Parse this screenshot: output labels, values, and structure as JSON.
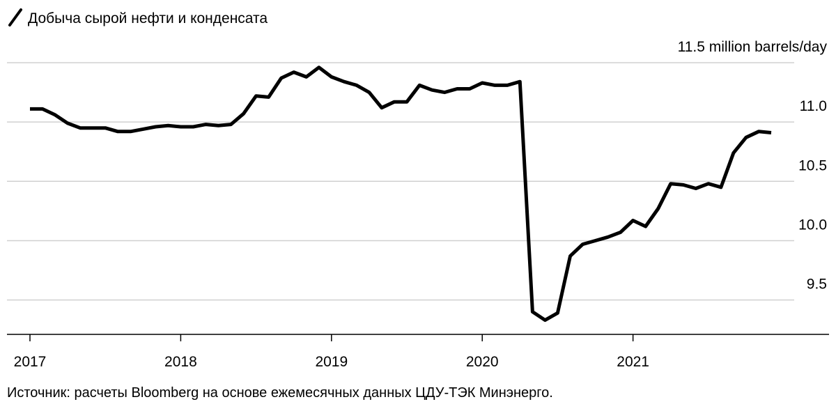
{
  "chart_data": {
    "type": "line",
    "title": "Добыча сырой нефти и конденсата",
    "source": "Источник: расчеты Bloomberg на основе ежемесячных данных ЦДУ-ТЭК Минэнерго.",
    "categories": [
      "2017",
      null,
      null,
      null,
      null,
      null,
      null,
      null,
      null,
      null,
      null,
      null,
      "2018",
      null,
      null,
      null,
      null,
      null,
      null,
      null,
      null,
      null,
      null,
      null,
      "2019",
      null,
      null,
      null,
      null,
      null,
      null,
      null,
      null,
      null,
      null,
      null,
      "2020",
      null,
      null,
      null,
      null,
      null,
      null,
      null,
      null,
      null,
      null,
      null,
      "2021",
      null,
      null,
      null,
      null,
      null,
      null,
      null,
      null,
      null,
      null,
      null
    ],
    "series": [
      {
        "name": "Добыча сырой нефти и конденсата",
        "color": "#000000",
        "values": [
          11.11,
          11.11,
          11.06,
          10.99,
          10.95,
          10.95,
          10.95,
          10.92,
          10.92,
          10.94,
          10.96,
          10.97,
          10.96,
          10.96,
          10.98,
          10.97,
          10.98,
          11.07,
          11.22,
          11.21,
          11.37,
          11.42,
          11.38,
          11.46,
          11.38,
          11.34,
          11.31,
          11.25,
          11.12,
          11.17,
          11.17,
          11.31,
          11.27,
          11.25,
          11.28,
          11.28,
          11.33,
          11.31,
          11.31,
          11.34,
          9.4,
          9.33,
          9.39,
          9.87,
          9.97,
          10.0,
          10.03,
          10.07,
          10.17,
          10.12,
          10.27,
          10.48,
          10.47,
          10.44,
          10.48,
          10.45,
          10.74,
          10.87,
          10.92,
          10.91
        ]
      }
    ],
    "ylim": [
      9.21,
      11.5
    ],
    "yticks": [
      {
        "value": 9.5,
        "label": "9.5"
      },
      {
        "value": 10,
        "label": "10.0"
      },
      {
        "value": 10.5,
        "label": "10.5"
      },
      {
        "value": 11,
        "label": "11.0"
      },
      {
        "value": 11.5,
        "label": "11.5 million barrels/day"
      }
    ],
    "grid": true
  }
}
